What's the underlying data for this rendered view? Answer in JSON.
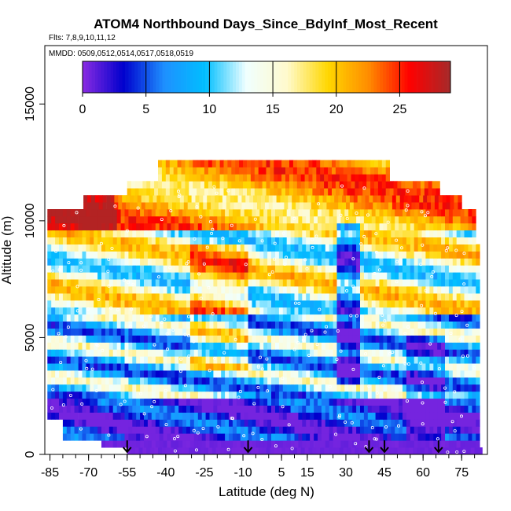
{
  "chart_data": {
    "type": "heatmap",
    "title": "ATOM4 Northbound Days_Since_BdyInf_Most_Recent",
    "subtitle_flights": "Flts: 7,8,9,10,11,12",
    "subtitle_dates": "MMDD: 0509,0512,0514,0517,0518,0519",
    "xlabel": "Latitude (deg N)",
    "ylabel": "Altitude (m)",
    "xlim": [
      -87,
      85
    ],
    "ylim": [
      0,
      17500
    ],
    "x_ticks": [
      -85,
      -70,
      -55,
      -40,
      -25,
      -10,
      5,
      15,
      30,
      45,
      60,
      75
    ],
    "y_ticks": [
      0,
      5000,
      10000,
      15000
    ],
    "colorbar": {
      "min": 0,
      "max": 29,
      "ticks": [
        0,
        5,
        10,
        15,
        20,
        25
      ],
      "colors": [
        "#8a2be2",
        "#0000cd",
        "#1e90ff",
        "#00bfff",
        "#f0ffff",
        "#fffacd",
        "#ffd700",
        "#ff8c00",
        "#ff0000",
        "#a52a2a"
      ]
    },
    "profile_latitudes": [
      -55,
      -8,
      39,
      45,
      66
    ],
    "grid": false
  }
}
